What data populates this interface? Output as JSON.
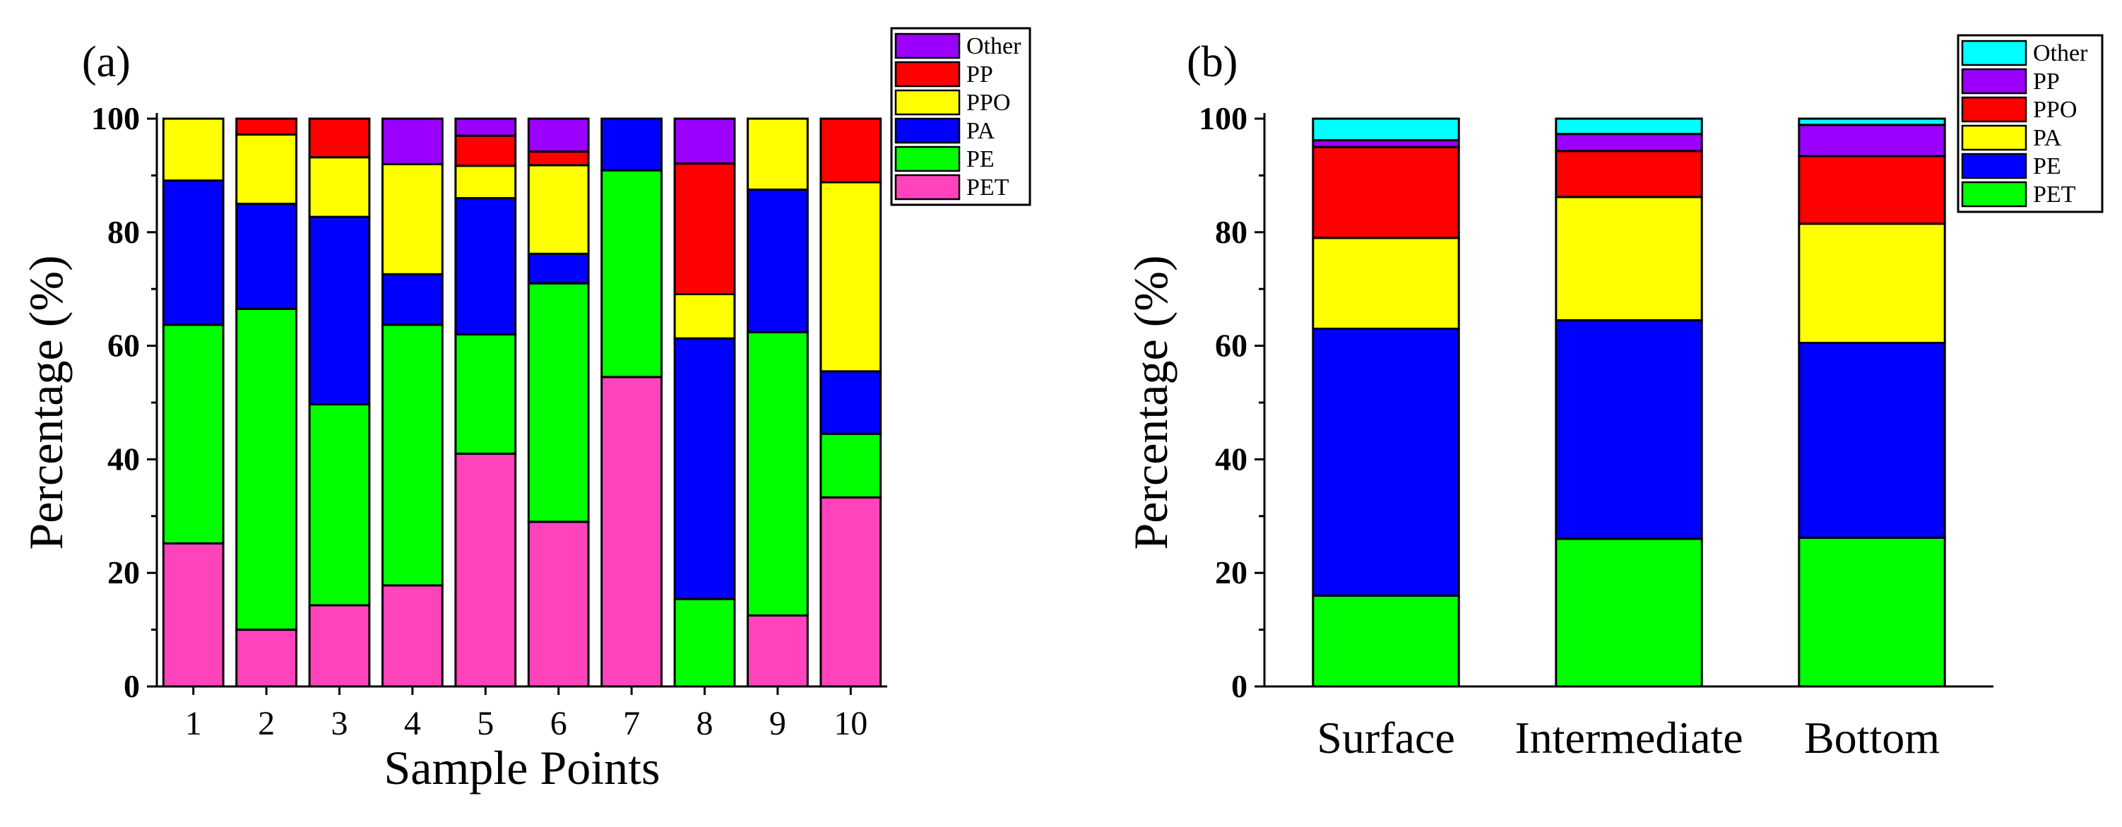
{
  "colors": {
    "Other": "#9B00FF",
    "PP": "#FF0000",
    "PPO": "#FFFF00",
    "PA": "#0000FF",
    "PE": "#00FF00",
    "PET": "#FF44BB",
    "Other_b": "#00FFFF",
    "PP_b": "#9B00FF",
    "PPO_b": "#FF0000",
    "PA_b": "#FFFF00",
    "PE_b": "#0000FF",
    "PET_b": "#00FF00"
  },
  "chart_data": [
    {
      "type": "bar",
      "stacked": true,
      "panel_label": "(a)",
      "xlabel": "Sample Points",
      "ylabel": "Percentage (%)",
      "ylim": [
        0,
        100
      ],
      "yticks": [
        "0",
        "20",
        "40",
        "60",
        "80",
        "100"
      ],
      "legend_position": "top-right",
      "categories": [
        "1",
        "2",
        "3",
        "4",
        "5",
        "6",
        "7",
        "8",
        "9",
        "10"
      ],
      "series": [
        {
          "name": "PET",
          "values": [
            25.2,
            10.0,
            14.3,
            17.8,
            41.0,
            29.0,
            54.5,
            0,
            12.5,
            33.3
          ]
        },
        {
          "name": "PE",
          "values": [
            38.5,
            56.5,
            35.4,
            45.9,
            21.0,
            42.0,
            36.4,
            15.4,
            49.9,
            11.2
          ]
        },
        {
          "name": "PA",
          "values": [
            25.4,
            18.5,
            33.0,
            8.9,
            24.0,
            5.2,
            9.1,
            45.9,
            25.1,
            11.0
          ]
        },
        {
          "name": "PPO",
          "values": [
            10.9,
            12.2,
            10.5,
            19.4,
            5.7,
            15.6,
            0,
            7.8,
            12.5,
            33.3
          ]
        },
        {
          "name": "PP",
          "values": [
            0,
            2.8,
            6.8,
            0,
            5.3,
            2.4,
            0,
            23.0,
            0,
            11.2
          ]
        },
        {
          "name": "Other",
          "values": [
            0,
            0,
            0,
            8.0,
            3.0,
            5.8,
            0,
            7.9,
            0,
            0
          ]
        }
      ],
      "legend_order": [
        "Other",
        "PP",
        "PPO",
        "PA",
        "PE",
        "PET"
      ]
    },
    {
      "type": "bar",
      "stacked": true,
      "panel_label": "(b)",
      "xlabel": "",
      "ylabel": "Percentage (%)",
      "ylim": [
        0,
        100
      ],
      "yticks": [
        "0",
        "20",
        "40",
        "60",
        "80",
        "100"
      ],
      "legend_position": "top-right",
      "categories": [
        "Surface",
        "Intermediate",
        "Bottom"
      ],
      "series": [
        {
          "name": "PET",
          "values": [
            16.0,
            26.0,
            26.2
          ]
        },
        {
          "name": "PE",
          "values": [
            47.0,
            38.5,
            34.3
          ]
        },
        {
          "name": "PA",
          "values": [
            16.0,
            21.7,
            21.0
          ]
        },
        {
          "name": "PPO",
          "values": [
            16.0,
            8.1,
            11.9
          ]
        },
        {
          "name": "PP",
          "values": [
            1.2,
            3.0,
            5.5
          ]
        },
        {
          "name": "Other",
          "values": [
            3.8,
            2.7,
            1.1
          ]
        }
      ],
      "legend_order": [
        "Other",
        "PP",
        "PPO",
        "PA",
        "PE",
        "PET"
      ]
    }
  ]
}
